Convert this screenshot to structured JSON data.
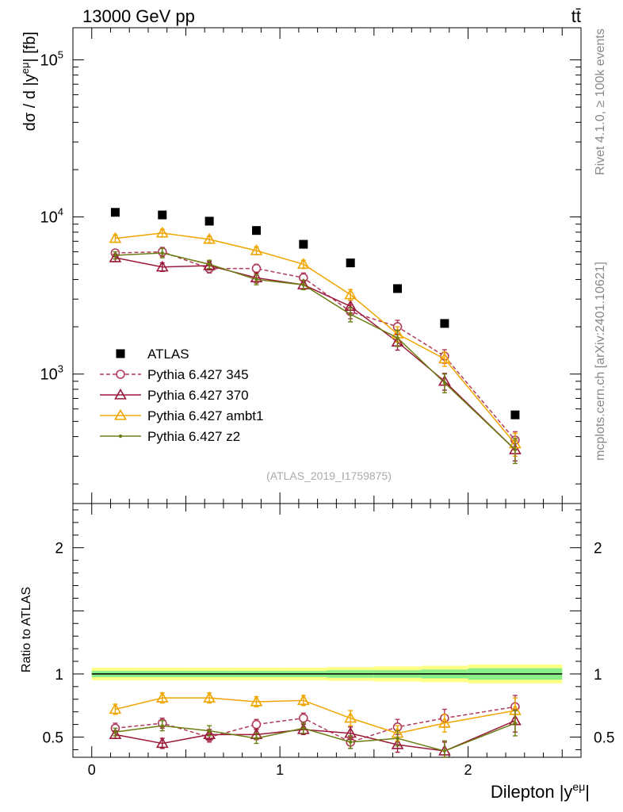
{
  "header": {
    "energy_label": "13000 GeV pp",
    "process_label": "tt̄",
    "side_label_top": "Rivet 4.1.0, ≥ 100k events",
    "side_label_bottom": "mcplots.cern.ch [arXiv:2401.10621]",
    "analysis_label": "(ATLAS_2019_I1759875)"
  },
  "chart_data": [
    {
      "type": "scatter",
      "name": "main",
      "yscale": "log",
      "ylabel": "dσ / d |y",
      "ylabel_sup": "eμ",
      "ylabel_unit": "| [fb]",
      "xlim": [
        -0.1,
        2.6
      ],
      "ylim": [
        150,
        160000
      ],
      "yticks": [
        {
          "value": 1000,
          "base": "10",
          "exp": "3"
        },
        {
          "value": 10000,
          "base": "10",
          "exp": "4"
        },
        {
          "value": 100000,
          "base": "10",
          "exp": "5"
        }
      ],
      "x_centers": [
        0.125,
        0.375,
        0.625,
        0.875,
        1.125,
        1.375,
        1.625,
        1.875,
        2.25
      ],
      "series": [
        {
          "name": "ATLAS",
          "color": "#000000",
          "marker": "square",
          "line": "none",
          "values": [
            10700,
            10300,
            9400,
            8200,
            6700,
            5100,
            3500,
            2100,
            550
          ],
          "errors": [
            0,
            0,
            0,
            0,
            0,
            0,
            0,
            0,
            0
          ]
        },
        {
          "name": "Pythia 6.427 345",
          "color": "#b03a5a",
          "marker": "circle",
          "line": "dashed",
          "values": [
            5900,
            6000,
            4700,
            4700,
            4100,
            2500,
            2000,
            1300,
            380
          ],
          "errors": [
            300,
            400,
            300,
            300,
            300,
            250,
            200,
            130,
            50
          ]
        },
        {
          "name": "Pythia 6.427 370",
          "color": "#9b1a3a",
          "marker": "triangle",
          "line": "solid",
          "values": [
            5500,
            4800,
            4900,
            4100,
            3700,
            2700,
            1600,
            900,
            330
          ],
          "errors": [
            300,
            300,
            300,
            300,
            250,
            250,
            180,
            110,
            50
          ]
        },
        {
          "name": "Pythia 6.427 ambt1",
          "color": "#f0a500",
          "marker": "triangle",
          "line": "solid",
          "values": [
            7300,
            7900,
            7200,
            6100,
            5000,
            3200,
            1800,
            1250,
            360
          ],
          "errors": [
            400,
            450,
            350,
            350,
            300,
            250,
            200,
            130,
            60
          ]
        },
        {
          "name": "Pythia 6.427 z2",
          "color": "#6b7d10",
          "marker": "dot",
          "line": "solid",
          "values": [
            5700,
            5900,
            5000,
            4000,
            3700,
            2400,
            1700,
            880,
            330
          ],
          "errors": [
            300,
            400,
            300,
            300,
            250,
            250,
            200,
            120,
            60
          ]
        }
      ]
    },
    {
      "type": "line",
      "name": "ratio",
      "ylabel": "Ratio to ATLAS",
      "xlabel": "Dilepton |y",
      "xlabel_sup": "eμ",
      "xlabel_suffix": "|",
      "xlim": [
        -0.1,
        2.6
      ],
      "ylim": [
        0.34,
        2.35
      ],
      "xticks": [
        {
          "value": 0,
          "label": "0"
        },
        {
          "value": 1,
          "label": "1"
        },
        {
          "value": 2,
          "label": "2"
        }
      ],
      "yticks": [
        {
          "value": 0.5,
          "label": "0.5"
        },
        {
          "value": 1,
          "label": "1"
        },
        {
          "value": 2,
          "label": "2"
        }
      ],
      "bin_edges": [
        0,
        0.25,
        0.5,
        0.75,
        1.0,
        1.25,
        1.5,
        1.75,
        2.0,
        2.5
      ],
      "band_inner": [
        0.025,
        0.025,
        0.025,
        0.025,
        0.025,
        0.03,
        0.03,
        0.035,
        0.045
      ],
      "band_outer": [
        0.05,
        0.05,
        0.05,
        0.05,
        0.05,
        0.055,
        0.06,
        0.065,
        0.075
      ],
      "x_centers": [
        0.125,
        0.375,
        0.625,
        0.875,
        1.125,
        1.375,
        1.625,
        1.875,
        2.25
      ],
      "series": [
        {
          "name": "Pythia 6.427 345",
          "color": "#b03a5a",
          "marker": "circle",
          "line": "dashed",
          "values": [
            0.57,
            0.61,
            0.5,
            0.6,
            0.65,
            0.46,
            0.58,
            0.65,
            0.74
          ],
          "errors": [
            0.04,
            0.04,
            0.04,
            0.04,
            0.04,
            0.05,
            0.06,
            0.07,
            0.09
          ]
        },
        {
          "name": "Pythia 6.427 370",
          "color": "#9b1a3a",
          "marker": "triangle",
          "line": "solid",
          "values": [
            0.52,
            0.45,
            0.52,
            0.52,
            0.56,
            0.53,
            0.44,
            0.39,
            0.63
          ],
          "errors": [
            0.03,
            0.04,
            0.04,
            0.04,
            0.04,
            0.05,
            0.06,
            0.07,
            0.09
          ]
        },
        {
          "name": "Pythia 6.427 ambt1",
          "color": "#f0a500",
          "marker": "triangle",
          "line": "solid",
          "values": [
            0.72,
            0.81,
            0.81,
            0.78,
            0.79,
            0.65,
            0.53,
            0.61,
            0.71
          ],
          "errors": [
            0.04,
            0.04,
            0.04,
            0.04,
            0.04,
            0.06,
            0.06,
            0.07,
            0.1
          ]
        },
        {
          "name": "Pythia 6.427 z2",
          "color": "#6b7d10",
          "marker": "dot",
          "line": "solid",
          "values": [
            0.54,
            0.59,
            0.55,
            0.49,
            0.57,
            0.46,
            0.49,
            0.39,
            0.61
          ],
          "errors": [
            0.03,
            0.04,
            0.04,
            0.04,
            0.04,
            0.05,
            0.06,
            0.08,
            0.1
          ]
        }
      ],
      "band_colors": {
        "outer": "#ffff88",
        "inner": "#88ee88"
      }
    }
  ],
  "legend": {
    "entries": [
      "ATLAS",
      "Pythia 6.427 345",
      "Pythia 6.427 370",
      "Pythia 6.427 ambt1",
      "Pythia 6.427 z2"
    ]
  }
}
